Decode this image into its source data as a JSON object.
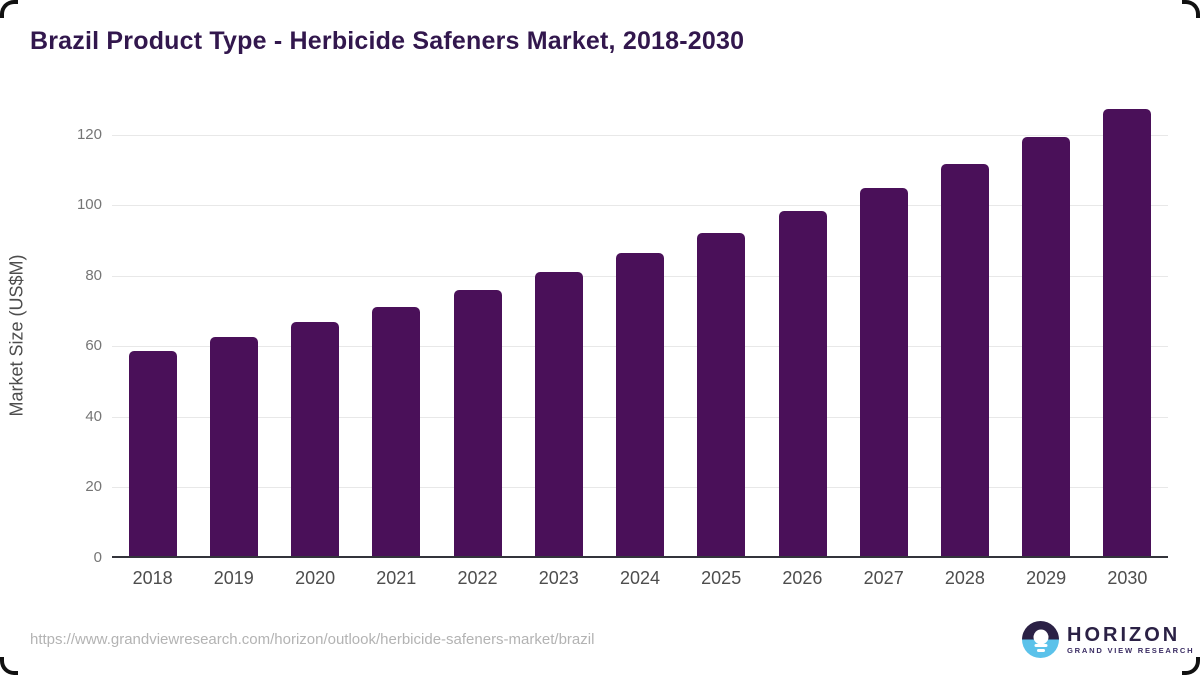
{
  "header": {
    "title": "Brazil Product Type - Herbicide Safeners Market, 2018-2030"
  },
  "chart_data": {
    "type": "bar",
    "title": "Brazil Product Type - Herbicide Safeners Market, 2018-2030",
    "categories": [
      "2018",
      "2019",
      "2020",
      "2021",
      "2022",
      "2023",
      "2024",
      "2025",
      "2026",
      "2027",
      "2028",
      "2029",
      "2030"
    ],
    "values": [
      58.0,
      62.0,
      66.3,
      70.6,
      75.3,
      80.6,
      85.9,
      91.6,
      97.8,
      104.4,
      111.2,
      118.8,
      126.7
    ],
    "xlabel": "",
    "ylabel": "Market Size (US$M)",
    "ylim": [
      0,
      127
    ],
    "yticks": [
      0,
      20,
      40,
      60,
      80,
      100,
      120
    ],
    "grid": "horizontal",
    "legend_position": "none",
    "bar_color": "#4a1059"
  },
  "footer": {
    "source_url": "https://www.grandviewresearch.com/horizon/outlook/herbicide-safeners-market/brazil",
    "logo": {
      "name": "HORIZON",
      "subtitle": "GRAND VIEW RESEARCH"
    }
  },
  "colors": {
    "title_text": "#32174d",
    "bar": "#4a1059",
    "y_tick_text": "#757575",
    "x_tick_text": "#4d4d4d",
    "axis_label_text": "#4d4d4d",
    "gridline": "#e8e8e8",
    "axis_line": "#33343b",
    "url_text": "#b3b3b3",
    "logo_dark": "#2b2145",
    "logo_blue": "#5bc2ea"
  }
}
